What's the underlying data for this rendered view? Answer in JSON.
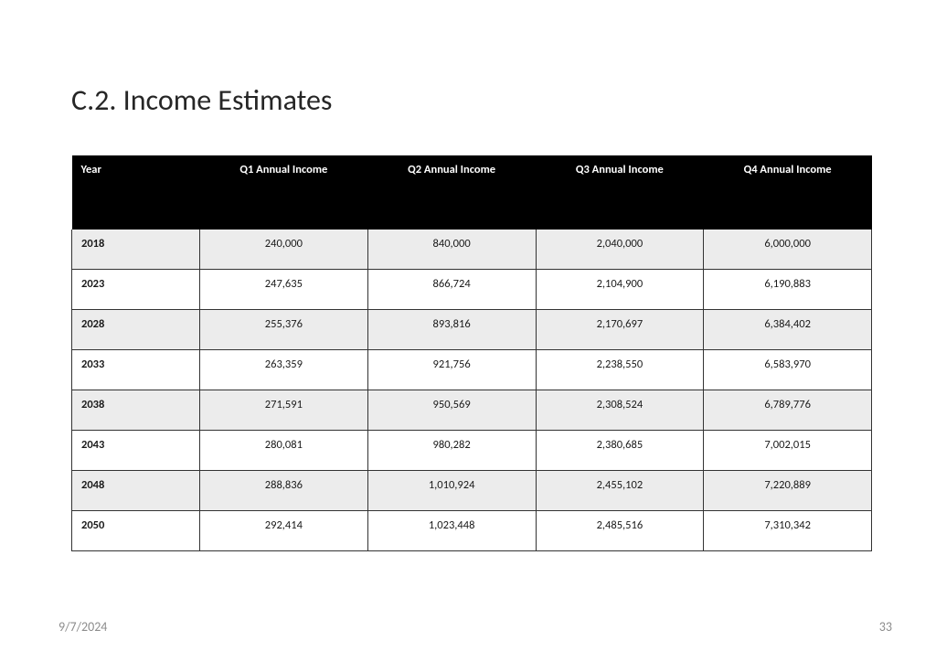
{
  "title": "C.2. Income Estimates",
  "footer": {
    "date": "9/7/2024",
    "page": "33"
  },
  "table": {
    "type": "table",
    "header_bg": "#000000",
    "header_fg": "#ffffff",
    "row_odd_bg": "#ececec",
    "row_even_bg": "#ffffff",
    "border_color": "#333333",
    "title_fontsize": 32,
    "header_fontsize": 12.5,
    "cell_fontsize": 12.5,
    "columns": [
      {
        "key": "year",
        "label": "Year",
        "align": "left"
      },
      {
        "key": "q1",
        "label": "Q1 Annual Income",
        "align": "center"
      },
      {
        "key": "q2",
        "label": "Q2 Annual Income",
        "align": "center"
      },
      {
        "key": "q3",
        "label": "Q3 Annual Income",
        "align": "center"
      },
      {
        "key": "q4",
        "label": "Q4 Annual Income",
        "align": "center"
      }
    ],
    "rows": [
      {
        "year": "2018",
        "q1": "240,000",
        "q2": "840,000",
        "q3": "2,040,000",
        "q4": "6,000,000"
      },
      {
        "year": "2023",
        "q1": "247,635",
        "q2": "866,724",
        "q3": "2,104,900",
        "q4": "6,190,883"
      },
      {
        "year": "2028",
        "q1": "255,376",
        "q2": "893,816",
        "q3": "2,170,697",
        "q4": "6,384,402"
      },
      {
        "year": "2033",
        "q1": "263,359",
        "q2": "921,756",
        "q3": "2,238,550",
        "q4": "6,583,970"
      },
      {
        "year": "2038",
        "q1": "271,591",
        "q2": "950,569",
        "q3": "2,308,524",
        "q4": "6,789,776"
      },
      {
        "year": "2043",
        "q1": "280,081",
        "q2": "980,282",
        "q3": "2,380,685",
        "q4": "7,002,015"
      },
      {
        "year": "2048",
        "q1": "288,836",
        "q2": "1,010,924",
        "q3": "2,455,102",
        "q4": "7,220,889"
      },
      {
        "year": "2050",
        "q1": "292,414",
        "q2": "1,023,448",
        "q3": "2,485,516",
        "q4": "7,310,342"
      }
    ]
  }
}
